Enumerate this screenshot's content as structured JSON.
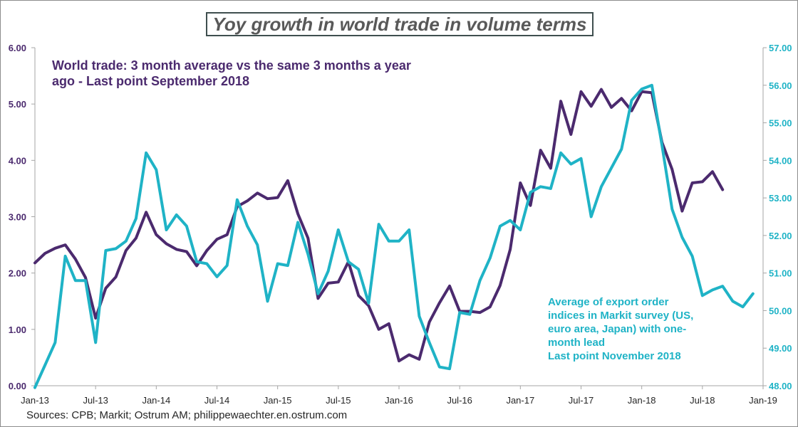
{
  "title": "Yoy growth in world trade in volume terms",
  "sources": "Sources: CPB; Markit; Ostrum AM; philippewaechter.en.ostrum.com",
  "annotation_left": [
    "World trade: 3 month average vs the same 3 months a year",
    "ago - Last point September 2018"
  ],
  "annotation_right": [
    "Average of export order",
    "indices in Markit survey (US,",
    "euro area, Japan) with one-",
    "month lead",
    "Last point November 2018"
  ],
  "colors": {
    "world_trade": "#4b2a6e",
    "markit": "#1fb3c6",
    "axis": "#a6a6a6"
  },
  "chart_data": {
    "type": "line",
    "title": "Yoy growth in world trade in volume terms",
    "x_ticks": [
      "Jan-13",
      "Jul-13",
      "Jan-14",
      "Jul-14",
      "Jan-15",
      "Jul-15",
      "Jan-16",
      "Jul-16",
      "Jan-17",
      "Jul-17",
      "Jan-18",
      "Jul-18",
      "Jan-19"
    ],
    "x_range_months": [
      0,
      72
    ],
    "y_left": {
      "min": 0,
      "max": 6,
      "step": 1,
      "tick_labels": [
        "0.00",
        "1.00",
        "2.00",
        "3.00",
        "4.00",
        "5.00",
        "6.00"
      ]
    },
    "y_right": {
      "min": 48,
      "max": 57,
      "step": 1,
      "tick_labels": [
        "48.00",
        "49.00",
        "50.00",
        "51.00",
        "52.00",
        "53.00",
        "54.00",
        "55.00",
        "56.00",
        "57.00"
      ]
    },
    "series": [
      {
        "name": "World trade: 3 month average vs the same 3 months a year ago",
        "axis": "left",
        "start_month": 0,
        "values": [
          2.18,
          2.35,
          2.44,
          2.5,
          2.25,
          1.92,
          1.2,
          1.73,
          1.93,
          2.4,
          2.62,
          3.08,
          2.68,
          2.52,
          2.42,
          2.38,
          2.13,
          2.4,
          2.6,
          2.68,
          3.18,
          3.28,
          3.42,
          3.32,
          3.34,
          3.64,
          3.05,
          2.62,
          1.55,
          1.82,
          1.84,
          2.2,
          1.6,
          1.42,
          1.0,
          1.1,
          0.44,
          0.55,
          0.47,
          1.13,
          1.47,
          1.77,
          1.32,
          1.32,
          1.3,
          1.4,
          1.78,
          2.42,
          3.6,
          3.2,
          4.18,
          3.86,
          5.05,
          4.46,
          5.22,
          4.96,
          5.26,
          4.94,
          5.1,
          4.88,
          5.22,
          5.2,
          4.32,
          3.84,
          3.1,
          3.6,
          3.62,
          3.8,
          3.48
        ]
      },
      {
        "name": "Average of export order indices in Markit survey (US, euro area, Japan) with one-month lead",
        "axis": "right",
        "start_month": 0,
        "values": [
          47.95,
          48.55,
          49.15,
          51.45,
          50.8,
          50.8,
          49.15,
          51.6,
          51.65,
          51.85,
          52.45,
          54.2,
          53.75,
          52.15,
          52.55,
          52.25,
          51.3,
          51.25,
          50.9,
          51.2,
          52.95,
          52.25,
          51.75,
          50.25,
          51.25,
          51.2,
          52.35,
          51.5,
          50.45,
          51.05,
          52.15,
          51.3,
          51.1,
          50.2,
          52.3,
          51.85,
          51.85,
          52.15,
          49.85,
          49.15,
          48.5,
          48.45,
          49.95,
          49.9,
          50.8,
          51.4,
          52.25,
          52.4,
          52.15,
          53.15,
          53.3,
          53.25,
          54.2,
          53.9,
          54.05,
          52.5,
          53.3,
          53.8,
          54.3,
          55.6,
          55.9,
          56.0,
          54.4,
          52.7,
          51.95,
          51.45,
          50.4,
          50.55,
          50.65,
          50.25,
          50.1,
          50.45
        ]
      }
    ]
  }
}
